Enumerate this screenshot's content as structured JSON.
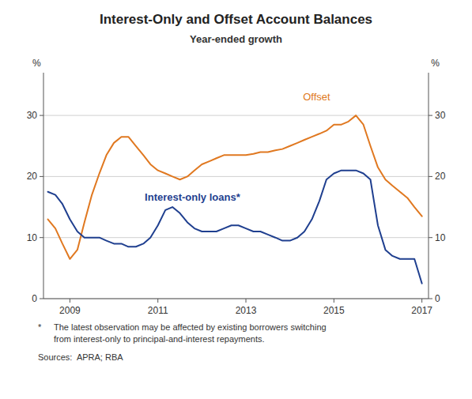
{
  "chart_data": {
    "type": "line",
    "title": "Interest-Only and Offset Account Balances",
    "subtitle": "Year-ended growth",
    "y_label": "%",
    "y2_label": "%",
    "x": [
      2008.5,
      2008.67,
      2008.83,
      2009.0,
      2009.17,
      2009.33,
      2009.5,
      2009.67,
      2009.83,
      2010.0,
      2010.17,
      2010.33,
      2010.5,
      2010.67,
      2010.83,
      2011.0,
      2011.17,
      2011.33,
      2011.5,
      2011.67,
      2011.83,
      2012.0,
      2012.17,
      2012.33,
      2012.5,
      2012.67,
      2012.83,
      2013.0,
      2013.17,
      2013.33,
      2013.5,
      2013.67,
      2013.83,
      2014.0,
      2014.17,
      2014.33,
      2014.5,
      2014.67,
      2014.83,
      2015.0,
      2015.17,
      2015.33,
      2015.5,
      2015.67,
      2015.83,
      2016.0,
      2016.17,
      2016.33,
      2016.5,
      2016.67,
      2016.83,
      2017.0
    ],
    "series": [
      {
        "name": "Offset",
        "color": "#E07820",
        "values": [
          13.0,
          11.5,
          9.0,
          6.5,
          8.0,
          12.5,
          17.0,
          20.5,
          23.5,
          25.5,
          26.5,
          26.5,
          25.0,
          23.5,
          22.0,
          21.0,
          20.5,
          20.0,
          19.5,
          20.0,
          21.0,
          22.0,
          22.5,
          23.0,
          23.5,
          23.5,
          23.5,
          23.5,
          23.7,
          24.0,
          24.0,
          24.3,
          24.5,
          25.0,
          25.5,
          26.0,
          26.5,
          27.0,
          27.5,
          28.5,
          28.5,
          29.0,
          30.0,
          28.5,
          25.0,
          21.5,
          19.5,
          18.5,
          17.5,
          16.5,
          15.0,
          13.5
        ]
      },
      {
        "name": "Interest-only loans*",
        "color": "#1F3F8F",
        "values": [
          17.5,
          17.0,
          15.5,
          13.0,
          11.0,
          10.0,
          10.0,
          10.0,
          9.5,
          9.0,
          9.0,
          8.5,
          8.5,
          9.0,
          10.0,
          12.0,
          14.5,
          15.0,
          14.0,
          12.5,
          11.5,
          11.0,
          11.0,
          11.0,
          11.5,
          12.0,
          12.0,
          11.5,
          11.0,
          11.0,
          10.5,
          10.0,
          9.5,
          9.5,
          10.0,
          11.0,
          13.0,
          16.0,
          19.5,
          20.5,
          21.0,
          21.0,
          21.0,
          20.5,
          19.5,
          12.0,
          8.0,
          7.0,
          6.5,
          6.5,
          6.5,
          2.5
        ]
      }
    ],
    "xlim": [
      2008.4,
      2017.15
    ],
    "xticks": [
      2009,
      2011,
      2013,
      2015,
      2017
    ],
    "ylim": [
      0,
      37
    ],
    "yticks": [
      0,
      10,
      20,
      30
    ],
    "y2lim": [
      0,
      37
    ],
    "y2ticks": [
      0,
      10,
      20,
      30
    ],
    "grid": true,
    "notes": [
      "*",
      "The latest observation may be affected by existing borrowers switching",
      "from interest-only to principal-and-interest repayments."
    ],
    "source": "Sources:  APRA; RBA"
  }
}
